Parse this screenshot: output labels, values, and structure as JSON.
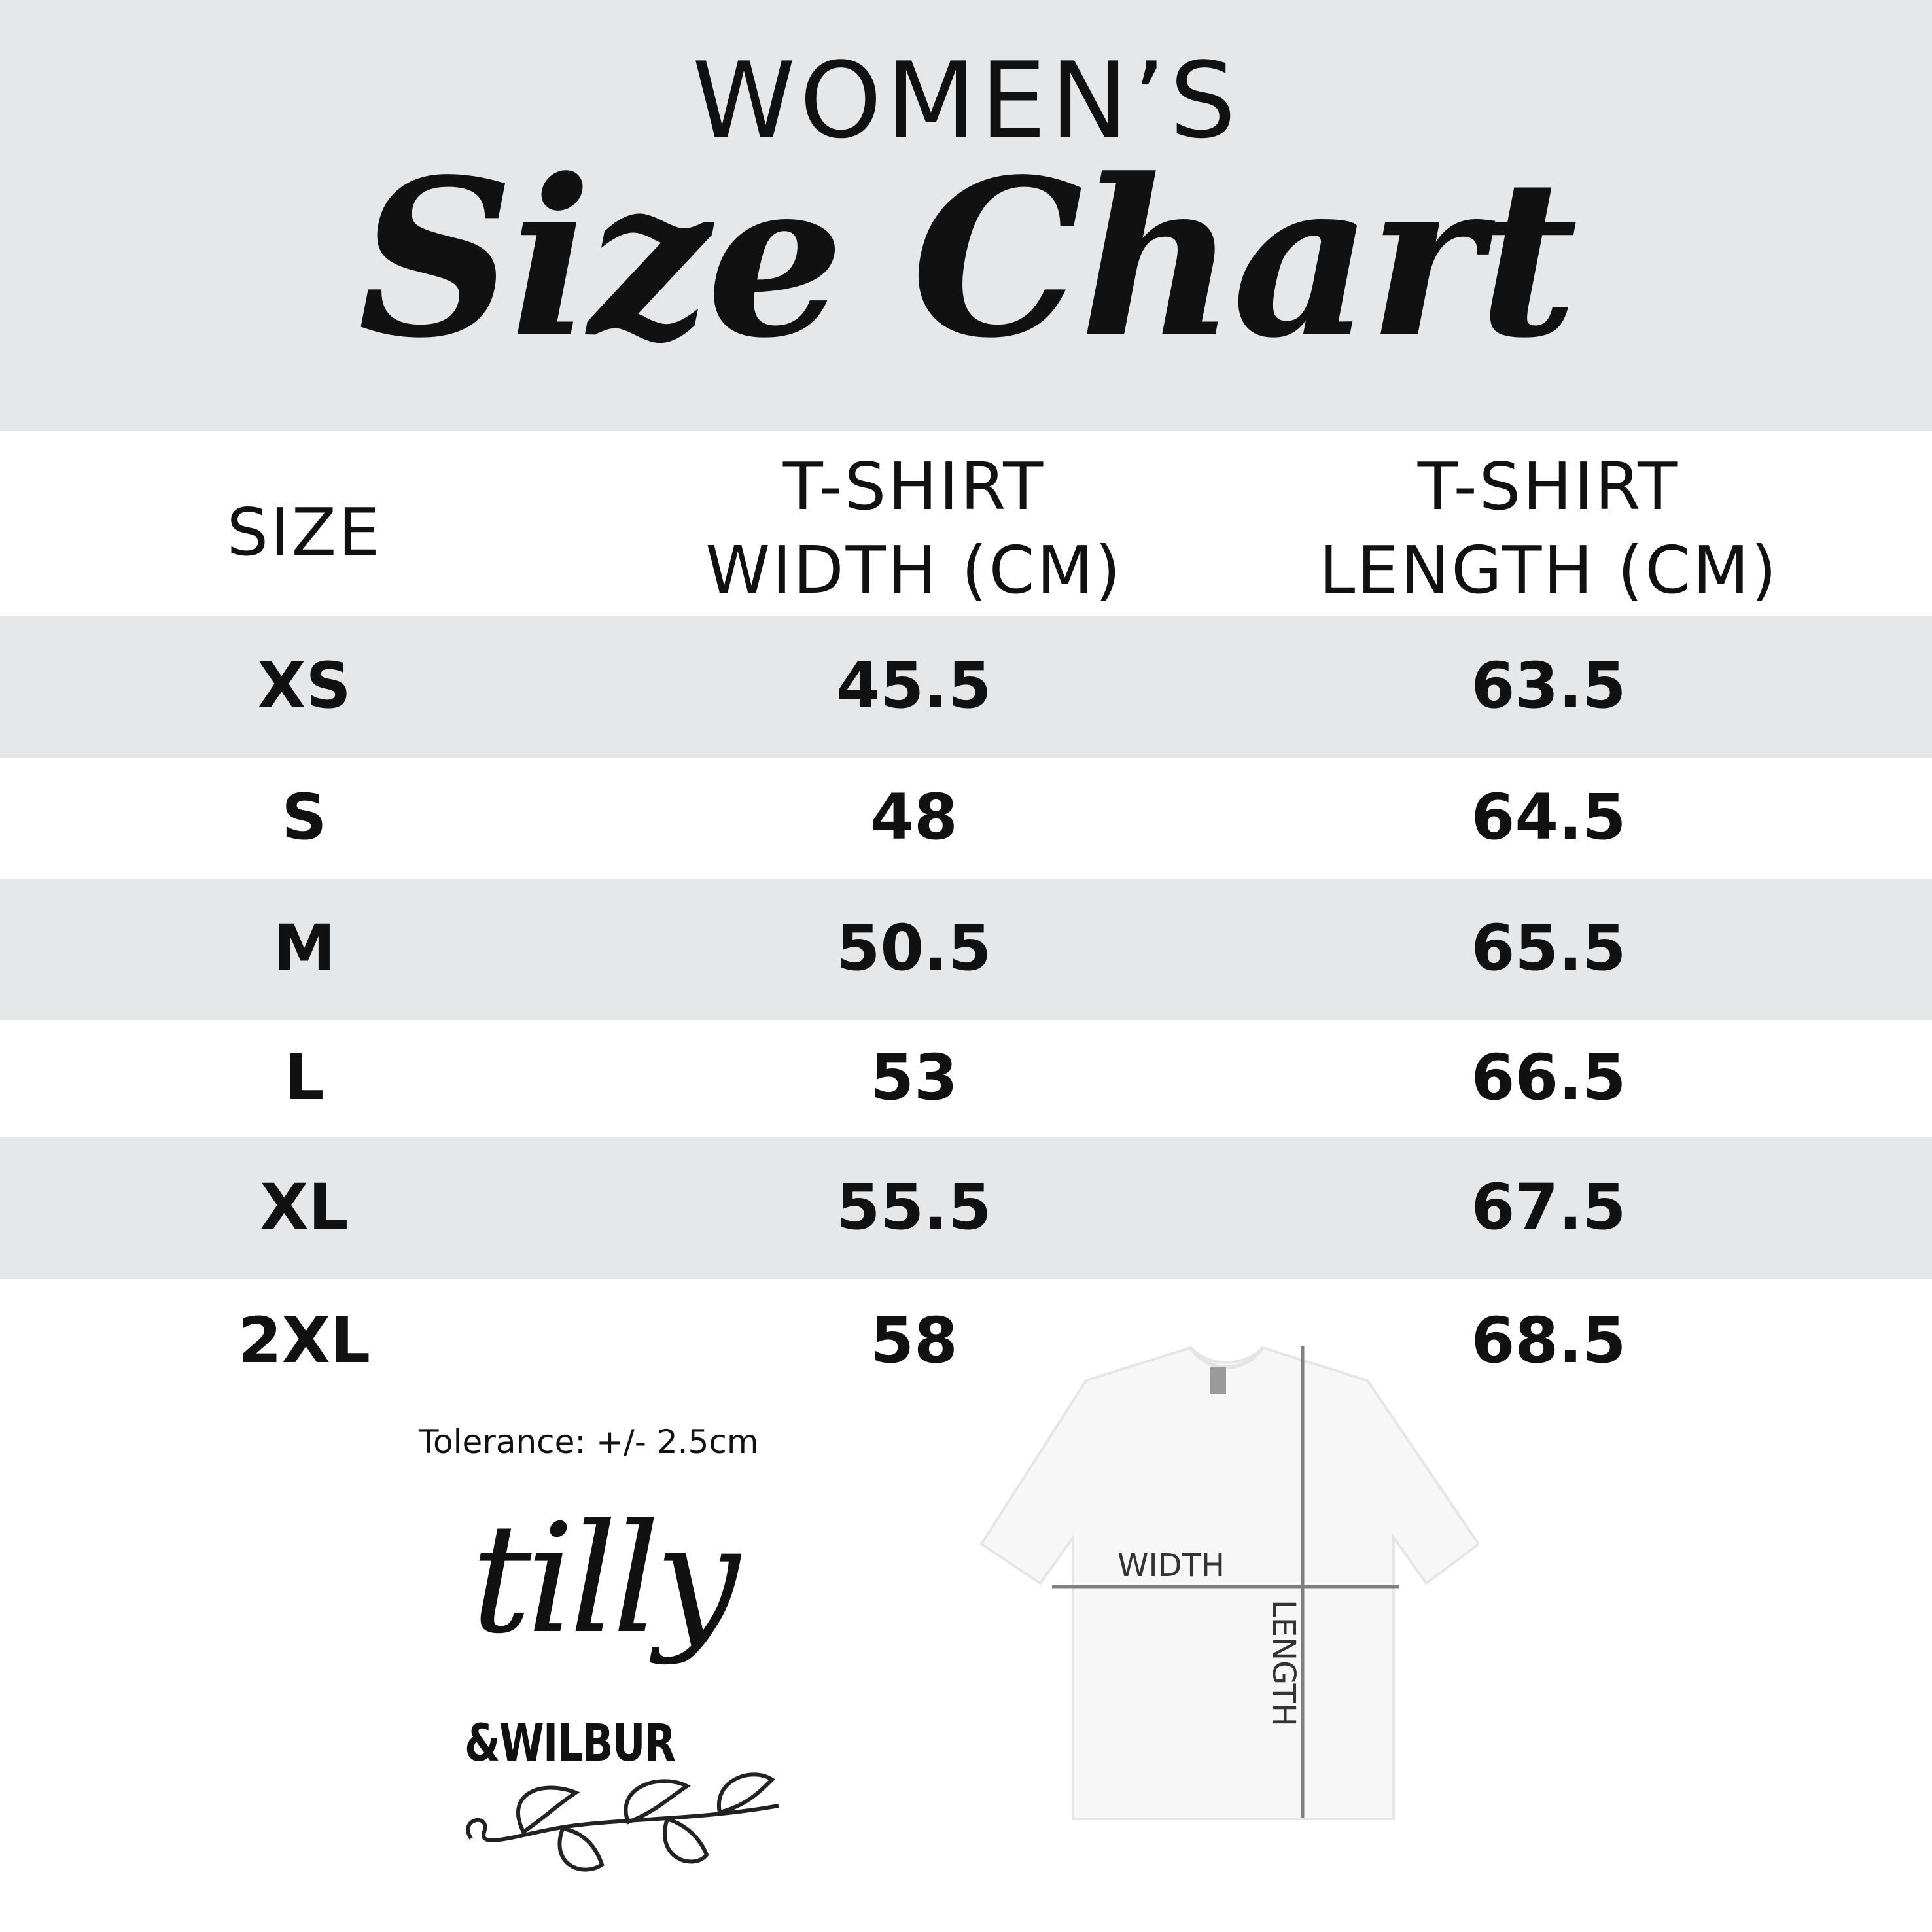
{
  "header": {
    "subtitle": "WOMEN’S",
    "title": "Size Chart"
  },
  "colors": {
    "band": "#e6e7e9",
    "text": "#111111",
    "diagram_line": "#808080"
  },
  "table": {
    "column_lines": [
      [
        "SIZE"
      ],
      [
        "T-SHIRT",
        "WIDTH (CM)"
      ],
      [
        "T-SHIRT",
        "LENGTH (CM)"
      ]
    ],
    "rows": [
      [
        "XS",
        "45.5",
        "63.5"
      ],
      [
        "S",
        "48",
        "64.5"
      ],
      [
        "M",
        "50.5",
        "65.5"
      ],
      [
        "L",
        "53",
        "66.5"
      ],
      [
        "XL",
        "55.5",
        "67.5"
      ],
      [
        "2XL",
        "58",
        "68.5"
      ]
    ]
  },
  "tolerance": "Tolerance: +/- 2.5cm",
  "logo": {
    "line1": "tilly",
    "line2": "&WILBUR"
  },
  "diagram": {
    "width_label": "WIDTH",
    "length_label": "LENGTH"
  }
}
